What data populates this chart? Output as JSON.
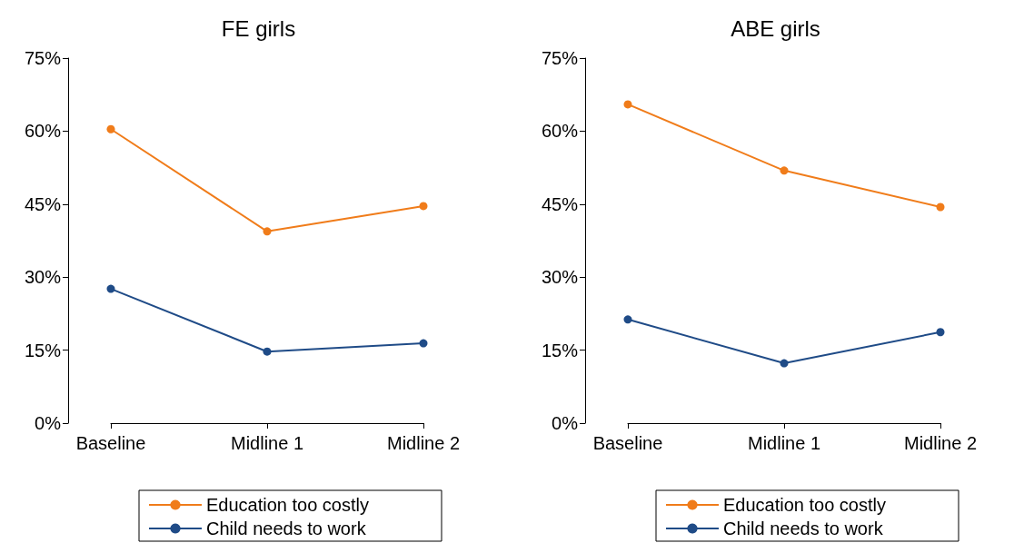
{
  "chart_data": [
    {
      "type": "line",
      "title": "FE girls",
      "categories": [
        "Baseline",
        "Midline 1",
        "Midline 2"
      ],
      "series": [
        {
          "name": "Education too costly",
          "color": "#f07c1a",
          "values": [
            60.4,
            39.4,
            44.6
          ]
        },
        {
          "name": "Child needs to work",
          "color": "#1f4b87",
          "values": [
            27.6,
            14.7,
            16.4
          ]
        }
      ],
      "ylim": [
        0,
        75
      ],
      "yticks": [
        {
          "value": 0,
          "label": "0%"
        },
        {
          "value": 15,
          "label": "15%"
        },
        {
          "value": 30,
          "label": "30%"
        },
        {
          "value": 45,
          "label": "45%"
        },
        {
          "value": 60,
          "label": "60%"
        },
        {
          "value": 75,
          "label": "75%"
        }
      ],
      "legend": "bottom",
      "marker": "circle",
      "line_style": "solid"
    },
    {
      "type": "line",
      "title": "ABE girls",
      "categories": [
        "Baseline",
        "Midline 1",
        "Midline 2"
      ],
      "series": [
        {
          "name": "Education too costly",
          "color": "#f07c1a",
          "values": [
            65.5,
            51.9,
            44.4
          ]
        },
        {
          "name": "Child needs to work",
          "color": "#1f4b87",
          "values": [
            21.3,
            12.3,
            18.7
          ]
        }
      ],
      "ylim": [
        0,
        75
      ],
      "yticks": [
        {
          "value": 0,
          "label": "0%"
        },
        {
          "value": 15,
          "label": "15%"
        },
        {
          "value": 30,
          "label": "30%"
        },
        {
          "value": 45,
          "label": "45%"
        },
        {
          "value": 60,
          "label": "60%"
        },
        {
          "value": 75,
          "label": "75%"
        }
      ],
      "legend": "bottom",
      "marker": "circle",
      "line_style": "solid"
    }
  ]
}
